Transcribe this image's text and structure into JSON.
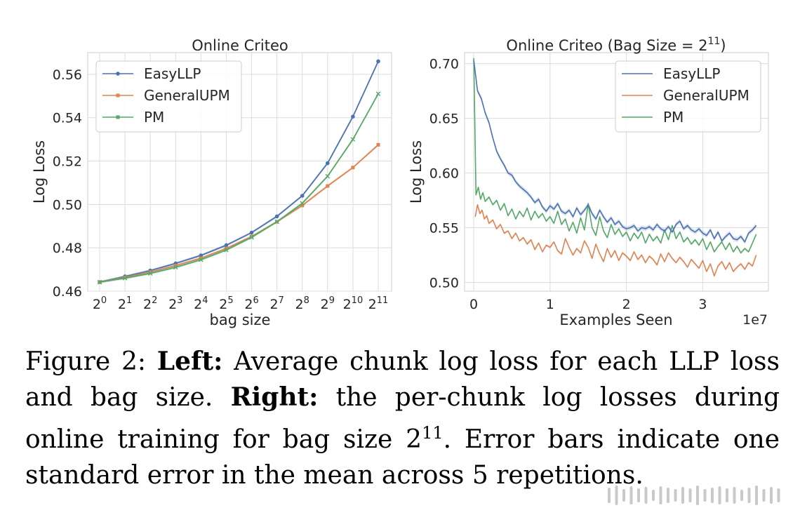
{
  "chart_data": [
    {
      "type": "line",
      "title": "Online Criteo",
      "xlabel": "bag size",
      "ylabel": "Log Loss",
      "xtick_labels": [
        {
          "base": "2",
          "exp": "0"
        },
        {
          "base": "2",
          "exp": "1"
        },
        {
          "base": "2",
          "exp": "2"
        },
        {
          "base": "2",
          "exp": "3"
        },
        {
          "base": "2",
          "exp": "4"
        },
        {
          "base": "2",
          "exp": "5"
        },
        {
          "base": "2",
          "exp": "6"
        },
        {
          "base": "2",
          "exp": "7"
        },
        {
          "base": "2",
          "exp": "8"
        },
        {
          "base": "2",
          "exp": "9"
        },
        {
          "base": "2",
          "exp": "10"
        },
        {
          "base": "2",
          "exp": "11"
        }
      ],
      "x": [
        0,
        1,
        2,
        3,
        4,
        5,
        6,
        7,
        8,
        9,
        10,
        11
      ],
      "x_scale": "log2",
      "ylim": [
        0.46,
        0.57
      ],
      "yticks": [
        0.46,
        0.48,
        0.5,
        0.52,
        0.54,
        0.56
      ],
      "ytick_labels": [
        "0.46",
        "0.48",
        "0.50",
        "0.52",
        "0.54",
        "0.56"
      ],
      "grid": true,
      "legend_position": "top-left",
      "series": [
        {
          "name": "EasyLLP",
          "color": "#4c72b0",
          "marker": "circle",
          "values": [
            0.4642,
            0.4668,
            0.4695,
            0.4728,
            0.4765,
            0.4812,
            0.487,
            0.4945,
            0.504,
            0.519,
            0.5405,
            0.566
          ]
        },
        {
          "name": "GeneralUPM",
          "color": "#dd8452",
          "marker": "square",
          "values": [
            0.4642,
            0.4663,
            0.4688,
            0.4718,
            0.4752,
            0.4797,
            0.4852,
            0.492,
            0.4995,
            0.5085,
            0.517,
            0.5275
          ]
        },
        {
          "name": "PM",
          "color": "#55a868",
          "marker": "x",
          "values": [
            0.4642,
            0.466,
            0.4682,
            0.471,
            0.4745,
            0.479,
            0.4848,
            0.492,
            0.5005,
            0.513,
            0.53,
            0.551
          ]
        }
      ]
    },
    {
      "type": "line",
      "title_base": "Online Criteo (Bag Size = 2",
      "title_exp": "11",
      "title_end": ")",
      "xlabel": "Examples Seen",
      "x_scale_label": "1e7",
      "ylabel": "Log Loss",
      "xlim": [
        -0.12,
        3.86
      ],
      "xticks": [
        0,
        1,
        2,
        3
      ],
      "xtick_labels": [
        "0",
        "1",
        "2",
        "3"
      ],
      "ylim": [
        0.492,
        0.71
      ],
      "yticks": [
        0.5,
        0.55,
        0.6,
        0.65,
        0.7
      ],
      "ytick_labels": [
        "0.50",
        "0.55",
        "0.60",
        "0.65",
        "0.70"
      ],
      "grid": true,
      "legend_position": "top-right",
      "series": [
        {
          "name": "EasyLLP",
          "color": "#4c72b0",
          "x": [
            0.0,
            0.05,
            0.1,
            0.15,
            0.2,
            0.25,
            0.3,
            0.35,
            0.4,
            0.45,
            0.5,
            0.55,
            0.6,
            0.65,
            0.7,
            0.75,
            0.8,
            0.85,
            0.9,
            0.95,
            1.0,
            1.05,
            1.1,
            1.15,
            1.2,
            1.25,
            1.3,
            1.35,
            1.4,
            1.45,
            1.5,
            1.55,
            1.6,
            1.65,
            1.7,
            1.75,
            1.8,
            1.85,
            1.9,
            1.95,
            2.0,
            2.05,
            2.1,
            2.15,
            2.2,
            2.25,
            2.3,
            2.35,
            2.4,
            2.45,
            2.5,
            2.55,
            2.6,
            2.65,
            2.7,
            2.75,
            2.8,
            2.85,
            2.9,
            2.95,
            3.0,
            3.05,
            3.1,
            3.15,
            3.2,
            3.25,
            3.3,
            3.35,
            3.4,
            3.45,
            3.5,
            3.55,
            3.6,
            3.65,
            3.7
          ],
          "values": [
            0.703,
            0.675,
            0.668,
            0.655,
            0.646,
            0.632,
            0.62,
            0.613,
            0.607,
            0.6,
            0.598,
            0.592,
            0.588,
            0.585,
            0.582,
            0.578,
            0.573,
            0.576,
            0.569,
            0.565,
            0.57,
            0.567,
            0.572,
            0.565,
            0.563,
            0.566,
            0.56,
            0.568,
            0.562,
            0.566,
            0.571,
            0.563,
            0.558,
            0.566,
            0.56,
            0.555,
            0.559,
            0.553,
            0.556,
            0.551,
            0.549,
            0.55,
            0.552,
            0.547,
            0.55,
            0.549,
            0.551,
            0.548,
            0.553,
            0.549,
            0.547,
            0.551,
            0.546,
            0.553,
            0.556,
            0.549,
            0.552,
            0.548,
            0.546,
            0.549,
            0.545,
            0.543,
            0.548,
            0.54,
            0.546,
            0.538,
            0.542,
            0.545,
            0.54,
            0.539,
            0.542,
            0.537,
            0.545,
            0.548,
            0.552
          ]
        },
        {
          "name": "GeneralUPM",
          "color": "#dd8452",
          "x": [
            0.02,
            0.05,
            0.08,
            0.11,
            0.14,
            0.17,
            0.2,
            0.25,
            0.3,
            0.35,
            0.4,
            0.45,
            0.5,
            0.55,
            0.6,
            0.65,
            0.7,
            0.75,
            0.8,
            0.85,
            0.9,
            0.95,
            1.0,
            1.05,
            1.1,
            1.15,
            1.2,
            1.25,
            1.3,
            1.35,
            1.4,
            1.45,
            1.5,
            1.55,
            1.6,
            1.65,
            1.7,
            1.75,
            1.8,
            1.85,
            1.9,
            1.95,
            2.0,
            2.05,
            2.1,
            2.15,
            2.2,
            2.25,
            2.3,
            2.35,
            2.4,
            2.45,
            2.5,
            2.55,
            2.6,
            2.65,
            2.7,
            2.75,
            2.8,
            2.85,
            2.9,
            2.95,
            3.0,
            3.05,
            3.1,
            3.15,
            3.2,
            3.25,
            3.3,
            3.35,
            3.4,
            3.45,
            3.5,
            3.55,
            3.6,
            3.65,
            3.7
          ],
          "values": [
            0.56,
            0.571,
            0.563,
            0.566,
            0.558,
            0.561,
            0.554,
            0.557,
            0.549,
            0.553,
            0.545,
            0.547,
            0.54,
            0.545,
            0.538,
            0.541,
            0.535,
            0.539,
            0.53,
            0.536,
            0.528,
            0.534,
            0.532,
            0.537,
            0.529,
            0.526,
            0.54,
            0.532,
            0.525,
            0.531,
            0.527,
            0.538,
            0.532,
            0.522,
            0.535,
            0.526,
            0.519,
            0.531,
            0.523,
            0.529,
            0.52,
            0.527,
            0.524,
            0.52,
            0.528,
            0.521,
            0.525,
            0.518,
            0.524,
            0.521,
            0.516,
            0.526,
            0.519,
            0.527,
            0.522,
            0.518,
            0.523,
            0.519,
            0.514,
            0.521,
            0.517,
            0.513,
            0.52,
            0.51,
            0.517,
            0.506,
            0.515,
            0.519,
            0.512,
            0.518,
            0.51,
            0.514,
            0.517,
            0.512,
            0.518,
            0.515,
            0.525
          ]
        },
        {
          "name": "PM",
          "color": "#55a868",
          "x": [
            0.0,
            0.03,
            0.06,
            0.09,
            0.12,
            0.15,
            0.2,
            0.25,
            0.3,
            0.35,
            0.4,
            0.45,
            0.5,
            0.55,
            0.6,
            0.65,
            0.7,
            0.75,
            0.8,
            0.85,
            0.9,
            0.95,
            1.0,
            1.05,
            1.1,
            1.15,
            1.2,
            1.25,
            1.3,
            1.35,
            1.4,
            1.45,
            1.5,
            1.55,
            1.6,
            1.65,
            1.7,
            1.75,
            1.8,
            1.85,
            1.9,
            1.95,
            2.0,
            2.05,
            2.1,
            2.15,
            2.2,
            2.25,
            2.3,
            2.35,
            2.4,
            2.45,
            2.5,
            2.55,
            2.6,
            2.65,
            2.7,
            2.75,
            2.8,
            2.85,
            2.9,
            2.95,
            3.0,
            3.05,
            3.1,
            3.15,
            3.2,
            3.25,
            3.3,
            3.35,
            3.4,
            3.45,
            3.5,
            3.55,
            3.6,
            3.65,
            3.7
          ],
          "values": [
            0.705,
            0.58,
            0.587,
            0.576,
            0.582,
            0.574,
            0.578,
            0.571,
            0.575,
            0.566,
            0.572,
            0.561,
            0.567,
            0.558,
            0.565,
            0.56,
            0.568,
            0.557,
            0.565,
            0.559,
            0.563,
            0.556,
            0.56,
            0.554,
            0.565,
            0.553,
            0.558,
            0.547,
            0.555,
            0.545,
            0.559,
            0.548,
            0.572,
            0.55,
            0.543,
            0.56,
            0.547,
            0.541,
            0.553,
            0.544,
            0.549,
            0.542,
            0.546,
            0.538,
            0.545,
            0.54,
            0.546,
            0.536,
            0.544,
            0.538,
            0.542,
            0.536,
            0.548,
            0.539,
            0.552,
            0.54,
            0.546,
            0.537,
            0.541,
            0.535,
            0.539,
            0.534,
            0.54,
            0.53,
            0.537,
            0.528,
            0.533,
            0.537,
            0.53,
            0.536,
            0.528,
            0.533,
            0.527,
            0.531,
            0.528,
            0.536,
            0.544
          ]
        }
      ]
    }
  ],
  "caption": {
    "prefix": "Figure 2: ",
    "left_label": "Left:",
    "left_text": " Average chunk log loss for each LLP loss and bag size. ",
    "right_label": "Right:",
    "right_text": " the per-chunk log losses during online training for bag size ",
    "bag_base": "2",
    "bag_exp": "11",
    "end_text": ". Error bars indicate one standard error in the mean across 5 repetitions."
  },
  "watermark": {
    "color": "#c9c9c9"
  }
}
